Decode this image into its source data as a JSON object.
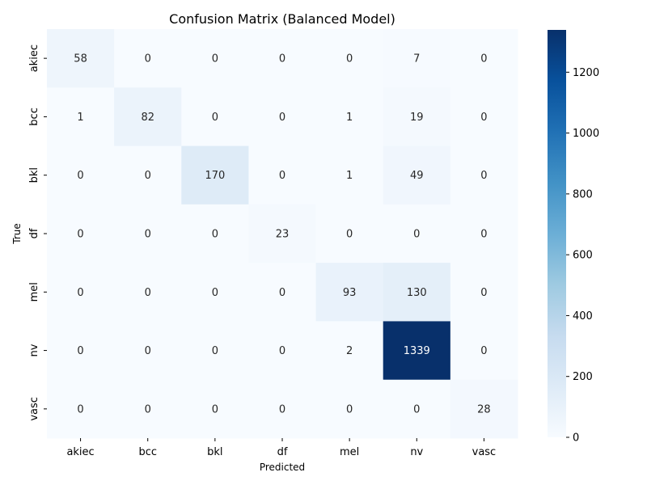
{
  "chart_data": {
    "type": "heatmap",
    "title": "Confusion Matrix (Balanced Model)",
    "xlabel": "Predicted",
    "ylabel": "True",
    "x_categories": [
      "akiec",
      "bcc",
      "bkl",
      "df",
      "mel",
      "nv",
      "vasc"
    ],
    "y_categories": [
      "akiec",
      "bcc",
      "bkl",
      "df",
      "mel",
      "nv",
      "vasc"
    ],
    "matrix": [
      [
        58,
        0,
        0,
        0,
        0,
        7,
        0
      ],
      [
        1,
        82,
        0,
        0,
        1,
        19,
        0
      ],
      [
        0,
        0,
        170,
        0,
        1,
        49,
        0
      ],
      [
        0,
        0,
        0,
        23,
        0,
        0,
        0
      ],
      [
        0,
        0,
        0,
        0,
        93,
        130,
        0
      ],
      [
        0,
        0,
        0,
        0,
        2,
        1339,
        0
      ],
      [
        0,
        0,
        0,
        0,
        0,
        0,
        28
      ]
    ],
    "colorbar": {
      "min": 0,
      "max": 1339,
      "ticks": [
        0,
        200,
        400,
        600,
        800,
        1000,
        1200
      ],
      "colormap": "Blues",
      "colors": [
        "#f7fbff",
        "#deebf7",
        "#c6dbef",
        "#9ecae1",
        "#6baed6",
        "#4292c6",
        "#2171b5",
        "#08519c",
        "#08306b"
      ]
    },
    "grid": false
  }
}
